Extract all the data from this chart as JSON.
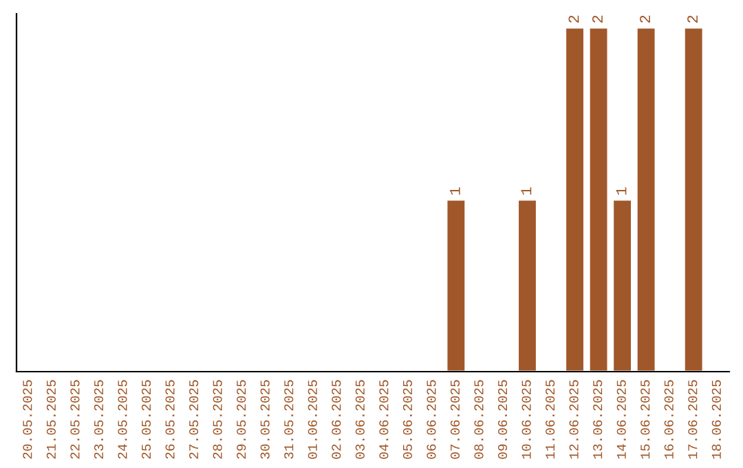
{
  "chart_data": {
    "type": "bar",
    "categories": [
      "20.05.2025",
      "21.05.2025",
      "22.05.2025",
      "23.05.2025",
      "24.05.2025",
      "25.05.2025",
      "26.05.2025",
      "27.05.2025",
      "28.05.2025",
      "29.05.2025",
      "30.05.2025",
      "31.05.2025",
      "01.06.2025",
      "02.06.2025",
      "03.06.2025",
      "04.06.2025",
      "05.06.2025",
      "06.06.2025",
      "07.06.2025",
      "08.06.2025",
      "09.06.2025",
      "10.06.2025",
      "11.06.2025",
      "12.06.2025",
      "13.06.2025",
      "14.06.2025",
      "15.06.2025",
      "16.06.2025",
      "17.06.2025",
      "18.06.2025"
    ],
    "values": [
      null,
      null,
      null,
      null,
      null,
      null,
      null,
      null,
      null,
      null,
      null,
      null,
      null,
      null,
      null,
      null,
      null,
      null,
      1,
      null,
      null,
      1,
      null,
      2,
      2,
      1,
      2,
      null,
      2,
      null
    ],
    "data_labels": true,
    "color": "#a0582a",
    "tick_labels": "x",
    "grid": false,
    "legend": false
  }
}
